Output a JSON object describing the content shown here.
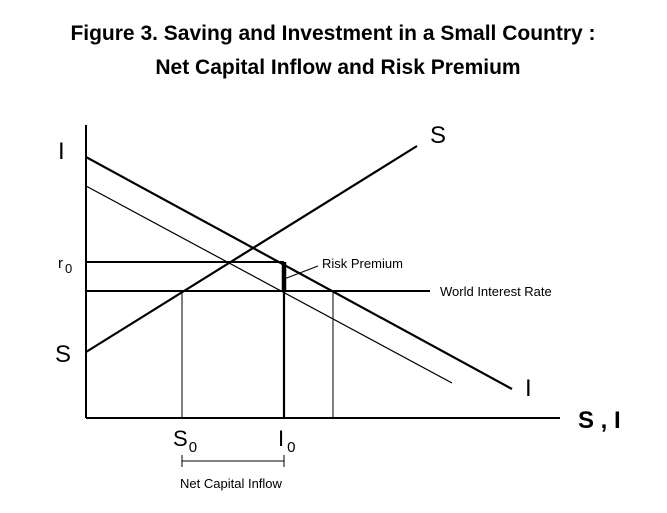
{
  "title": {
    "line1": "Figure 3.  Saving and Investment in a Small Country :",
    "line2": "Net Capital Inflow and Risk Premium"
  },
  "curves": {
    "investment_left": "I",
    "investment_right": "I",
    "saving_top": "S",
    "saving_left": "S"
  },
  "y_axis": {
    "r0_main": "r",
    "r0_sub": "0"
  },
  "x_axis": {
    "label": "S , I",
    "s0_main": "S",
    "s0_sub": "0",
    "i0_main": "I",
    "i0_sub": "0"
  },
  "annotations": {
    "risk_premium": "Risk Premium",
    "world_interest_rate": "World Interest Rate",
    "net_capital_inflow": "Net Capital Inflow"
  }
}
